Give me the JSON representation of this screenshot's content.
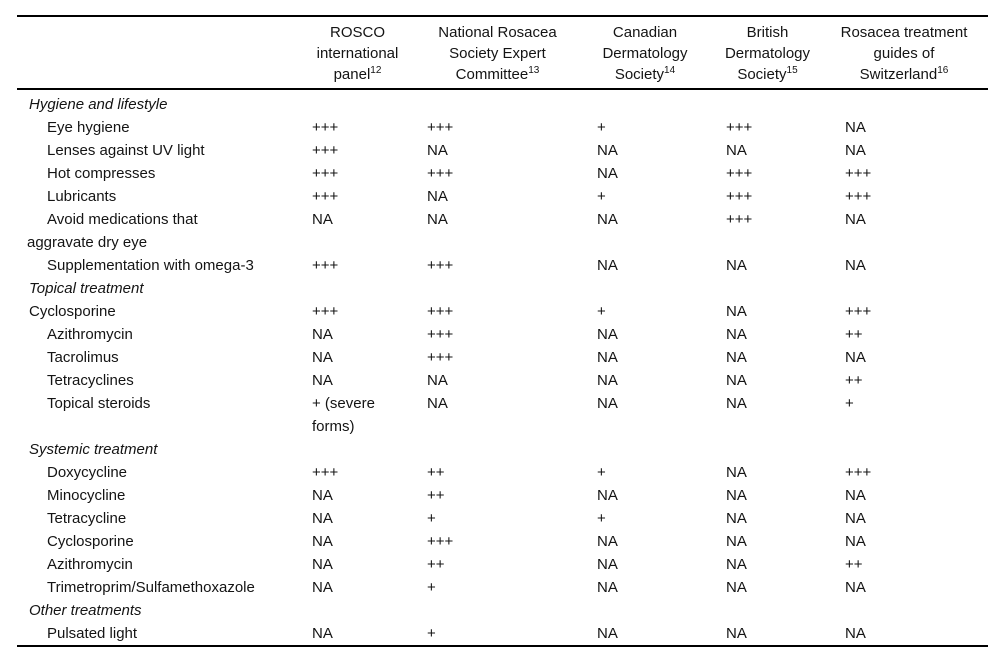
{
  "table": {
    "columns": [
      {
        "id": "treatment",
        "lines": [],
        "ref": ""
      },
      {
        "id": "rosco-international-panel",
        "lines": [
          "ROSCO",
          "international",
          "panel"
        ],
        "ref": "12"
      },
      {
        "id": "national-rosacea-society-expert-committee",
        "lines": [
          "National Rosacea",
          "Society Expert",
          "Committee"
        ],
        "ref": "13"
      },
      {
        "id": "canadian-dermatology-society",
        "lines": [
          "Canadian",
          "Dermatology",
          "Society"
        ],
        "ref": "14"
      },
      {
        "id": "british-dermatology-society",
        "lines": [
          "British",
          "Dermatology",
          "Society"
        ],
        "ref": "15"
      },
      {
        "id": "rosacea-treatment-guides-of-switzerland",
        "lines": [
          "Rosacea treatment",
          "guides of",
          "Switzerland"
        ],
        "ref": "16"
      }
    ],
    "rows": [
      {
        "type": "section",
        "label": "Hygiene and lifestyle",
        "values": [
          "",
          "",
          "",
          "",
          ""
        ]
      },
      {
        "type": "item",
        "label": "Eye hygiene",
        "values": [
          "+++",
          "+++",
          "+",
          "+++",
          "NA"
        ]
      },
      {
        "type": "item",
        "label": "Lenses against UV light",
        "values": [
          "+++",
          "NA",
          "NA",
          "NA",
          "NA"
        ]
      },
      {
        "type": "item",
        "label": "Hot compresses",
        "values": [
          "+++",
          "+++",
          "NA",
          "+++",
          "+++"
        ]
      },
      {
        "type": "item",
        "label": "Lubricants",
        "values": [
          "+++",
          "NA",
          "+",
          "+++",
          "+++"
        ]
      },
      {
        "type": "item",
        "style": "hang",
        "label": "Avoid medications that\naggravate dry eye",
        "values": [
          "NA",
          "NA",
          "NA",
          "+++",
          "NA"
        ]
      },
      {
        "type": "item",
        "label": "Supplementation with omega-3",
        "values": [
          "+++",
          "+++",
          "NA",
          "NA",
          "NA"
        ]
      },
      {
        "type": "section",
        "label": "Topical treatment",
        "values": [
          "",
          "",
          "",
          "",
          ""
        ]
      },
      {
        "type": "item",
        "style": "flush",
        "label": "Cyclosporine",
        "values": [
          "+++",
          "+++",
          "+",
          "NA",
          "+++"
        ]
      },
      {
        "type": "item",
        "label": "Azithromycin",
        "values": [
          "NA",
          "+++",
          "NA",
          "NA",
          "++"
        ]
      },
      {
        "type": "item",
        "label": "Tacrolimus",
        "values": [
          "NA",
          "+++",
          "NA",
          "NA",
          "NA"
        ]
      },
      {
        "type": "item",
        "label": "Tetracyclines",
        "values": [
          "NA",
          "NA",
          "NA",
          "NA",
          "++"
        ]
      },
      {
        "type": "item",
        "label": "Topical steroids",
        "values": [
          "+ (severe\nforms)",
          "NA",
          "NA",
          "NA",
          "+"
        ]
      },
      {
        "type": "section",
        "label": "Systemic treatment",
        "values": [
          "",
          "",
          "",
          "",
          ""
        ]
      },
      {
        "type": "item",
        "label": "Doxycycline",
        "values": [
          "+++",
          "++",
          "+",
          "NA",
          "+++"
        ]
      },
      {
        "type": "item",
        "label": "Minocycline",
        "values": [
          "NA",
          "++",
          "NA",
          "NA",
          "NA"
        ]
      },
      {
        "type": "item",
        "label": "Tetracycline",
        "values": [
          "NA",
          "+",
          "+",
          "NA",
          "NA"
        ]
      },
      {
        "type": "item",
        "label": "Cyclosporine",
        "values": [
          "NA",
          "+++",
          "NA",
          "NA",
          "NA"
        ]
      },
      {
        "type": "item",
        "label": "Azithromycin",
        "values": [
          "NA",
          "++",
          "NA",
          "NA",
          "++"
        ]
      },
      {
        "type": "item",
        "label": "Trimetroprim/Sulfamethoxazole",
        "values": [
          "NA",
          "+",
          "NA",
          "NA",
          "NA"
        ]
      },
      {
        "type": "section",
        "label": "Other treatments",
        "values": [
          "",
          "",
          "",
          "",
          ""
        ]
      },
      {
        "type": "item",
        "label": "Pulsated light",
        "values": [
          "NA",
          "+",
          "NA",
          "NA",
          "NA"
        ]
      }
    ]
  }
}
